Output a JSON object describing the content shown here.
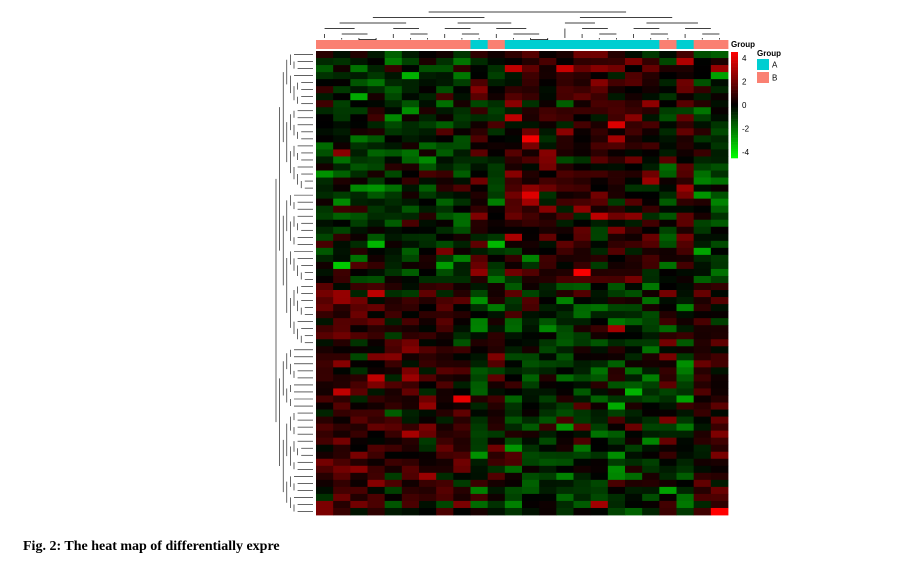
{
  "caption": "Fig. 2: The heat map of differentially expre",
  "legend": {
    "annotation_track_label": "Group",
    "group_title": "Group",
    "groups": [
      {
        "label": "A",
        "color": "#00CED1"
      },
      {
        "label": "B",
        "color": "#FA8072"
      }
    ],
    "colorbar_ticks": [
      {
        "value": 4,
        "label": "4"
      },
      {
        "value": 2,
        "label": "2"
      },
      {
        "value": 0,
        "label": "0"
      },
      {
        "value": -2,
        "label": "-2"
      },
      {
        "value": -4,
        "label": "-4"
      }
    ]
  },
  "chart_data": {
    "type": "heatmap",
    "title": "",
    "value_range": [
      -4.5,
      4.5
    ],
    "colorscale": [
      "#00FF00",
      "#000000",
      "#FF0000"
    ],
    "n_rows": 66,
    "n_columns": 24,
    "column_groups": [
      "B",
      "B",
      "B",
      "B",
      "B",
      "B",
      "B",
      "B",
      "B",
      "A",
      "B",
      "A",
      "A",
      "A",
      "A",
      "A",
      "A",
      "A",
      "A",
      "A",
      "B",
      "A",
      "B",
      "B"
    ],
    "seed": 7,
    "dendrograms": {
      "rows": true,
      "columns": true
    }
  }
}
